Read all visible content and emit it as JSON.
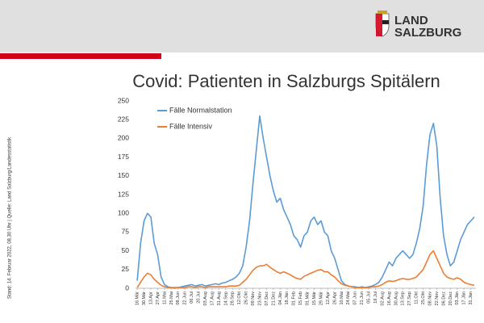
{
  "logo": {
    "line1": "LAND",
    "line2": "SALZBURG"
  },
  "source_note": "Stand: 14. Februar 2022, 08.30 Uhr  |  Quelle: Land Salzburg/Landesstatistik",
  "chart_data": {
    "type": "line",
    "title": "Covid: Patienten in Salzburgs Spitälern",
    "categories": [
      "16.Mär",
      null,
      "30.Mär",
      null,
      "13.Apr",
      null,
      "27.Apr",
      null,
      "11.Mai",
      null,
      "25.Mai",
      null,
      "08.Jun",
      null,
      "22.Jun",
      null,
      "06.Jul",
      null,
      "20.Jul",
      null,
      "03.Aug",
      null,
      "17.Aug",
      null,
      "31.Aug",
      null,
      "14.Sep",
      null,
      "28.Sep",
      null,
      "12.Okt",
      null,
      "26.Okt",
      null,
      "09.Nov",
      null,
      "23.Nov",
      null,
      "07.Dez",
      null,
      "21.Dez",
      null,
      "04.Jän",
      null,
      "18.Jän",
      null,
      "01.Feb",
      null,
      "15.Feb",
      null,
      "01.Mär",
      null,
      "15.Mär",
      null,
      "29.Mär",
      null,
      "12.Apr",
      null,
      "26.Apr",
      null,
      "10.Mai",
      null,
      "24.Mai",
      null,
      "07.Jun",
      null,
      "21.Jun",
      null,
      "05.Jul",
      null,
      "19.Jul",
      null,
      "02.Aug",
      null,
      "16.Aug",
      null,
      "30.Aug",
      null,
      "13.Sep",
      null,
      "27.Sep",
      null,
      "11.Okt",
      null,
      "25.Okt",
      null,
      "08.Nov",
      null,
      "22.Nov",
      null,
      "06.Dez",
      null,
      "20.Dez",
      null,
      "03.Jän",
      null,
      "17.Jän",
      null,
      "31.Jän",
      null
    ],
    "series": [
      {
        "name": "Fälle Normalstation",
        "color": "#5b9bd5",
        "values": [
          10,
          60,
          90,
          100,
          95,
          60,
          45,
          15,
          5,
          2,
          1,
          0,
          1,
          2,
          3,
          4,
          5,
          3,
          4,
          5,
          3,
          4,
          5,
          6,
          5,
          7,
          8,
          10,
          12,
          15,
          20,
          30,
          55,
          90,
          140,
          185,
          230,
          200,
          175,
          150,
          130,
          115,
          120,
          105,
          95,
          85,
          70,
          65,
          55,
          70,
          75,
          90,
          95,
          85,
          90,
          75,
          70,
          50,
          40,
          25,
          10,
          5,
          3,
          2,
          2,
          1,
          2,
          1,
          2,
          3,
          5,
          8,
          15,
          25,
          35,
          30,
          40,
          45,
          50,
          45,
          40,
          45,
          60,
          80,
          110,
          165,
          205,
          220,
          190,
          120,
          70,
          45,
          30,
          35,
          50,
          65,
          75,
          85,
          90,
          95
        ]
      },
      {
        "name": "Fälle Intensiv",
        "color": "#ed7d31",
        "values": [
          1,
          8,
          15,
          20,
          18,
          12,
          8,
          4,
          2,
          1,
          1,
          1,
          1,
          1,
          1,
          2,
          2,
          1,
          2,
          2,
          1,
          2,
          2,
          2,
          2,
          2,
          2,
          3,
          3,
          3,
          4,
          8,
          12,
          18,
          24,
          28,
          30,
          30,
          32,
          28,
          25,
          22,
          20,
          22,
          20,
          18,
          15,
          13,
          12,
          16,
          18,
          20,
          22,
          24,
          25,
          22,
          22,
          18,
          15,
          10,
          6,
          4,
          3,
          2,
          1,
          1,
          1,
          1,
          1,
          2,
          2,
          3,
          5,
          8,
          10,
          9,
          10,
          12,
          13,
          12,
          12,
          13,
          15,
          20,
          25,
          35,
          45,
          50,
          40,
          30,
          20,
          15,
          13,
          12,
          14,
          12,
          8,
          6,
          5,
          4
        ]
      }
    ],
    "ylim": [
      0,
      250
    ],
    "yticks": [
      0,
      25,
      50,
      75,
      100,
      125,
      150,
      175,
      200,
      225,
      250
    ],
    "grid": false
  }
}
